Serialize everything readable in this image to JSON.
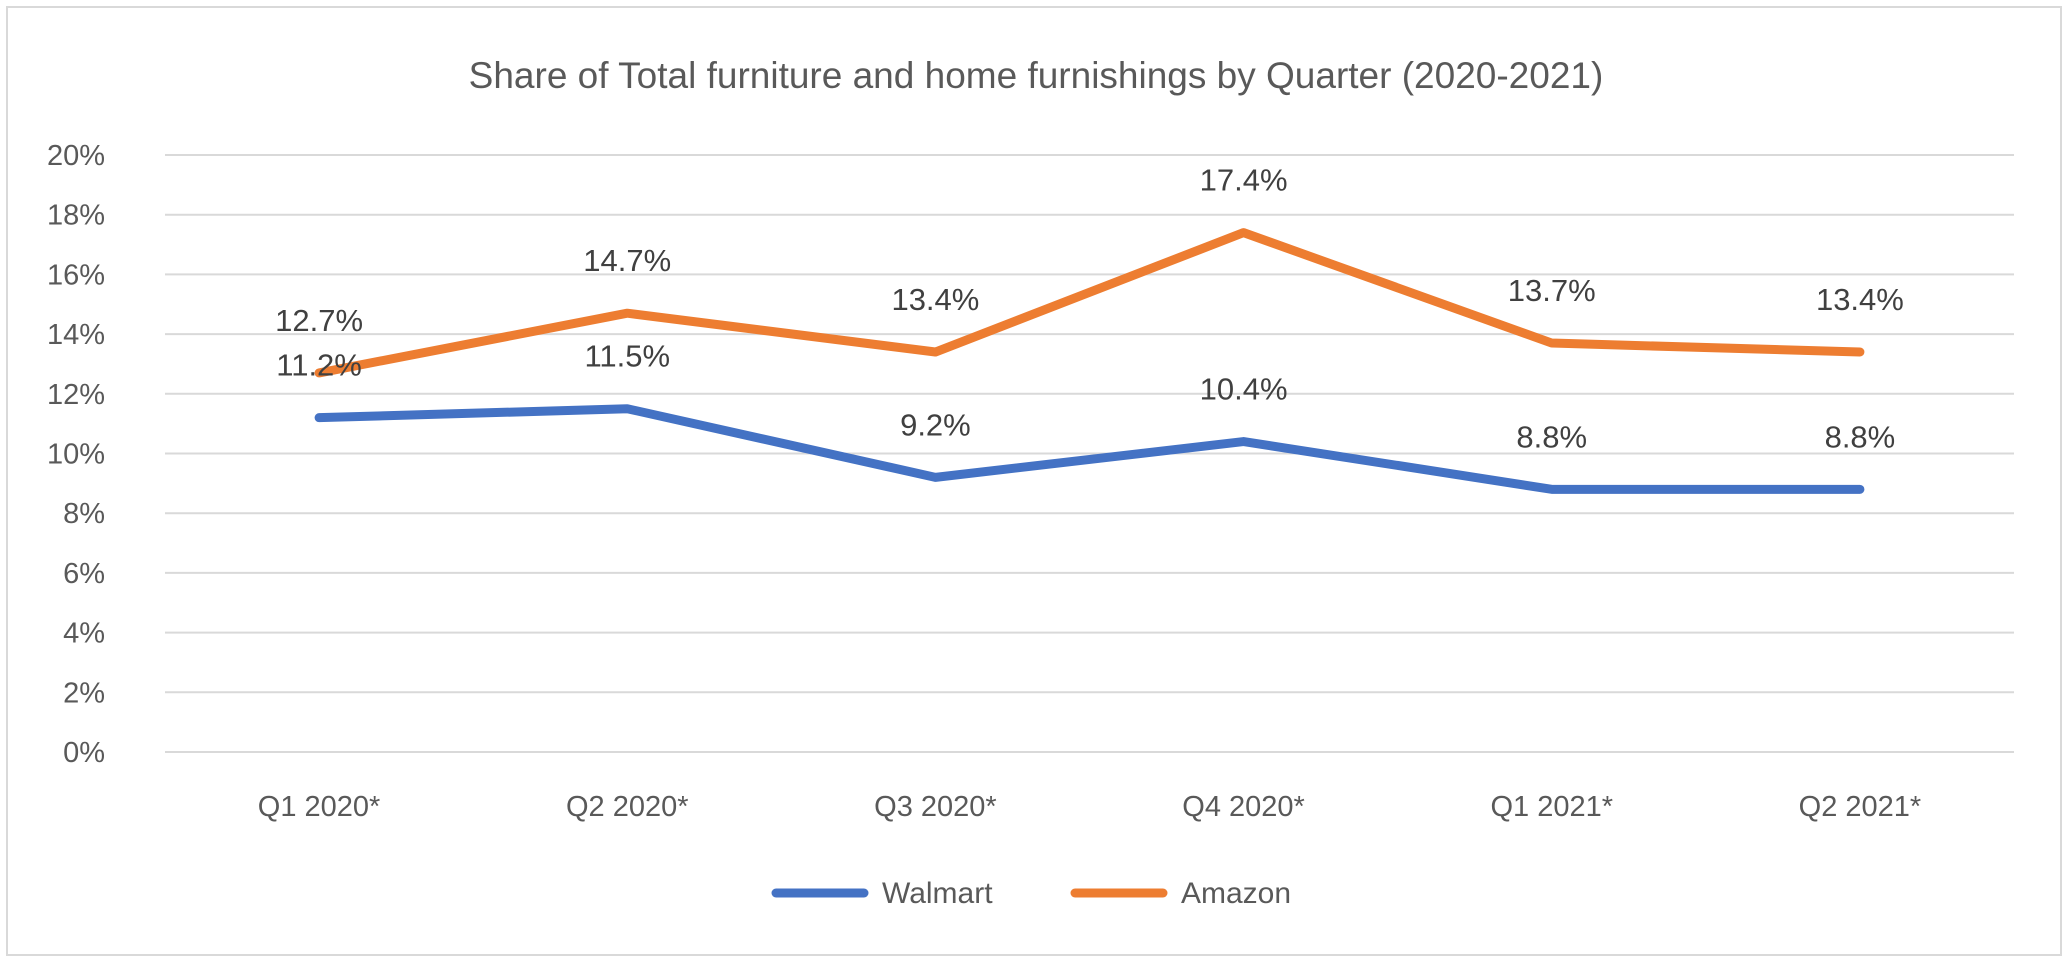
{
  "chart_data": {
    "type": "line",
    "title": "Share of Total furniture and home furnishings by Quarter (2020-2021)",
    "xlabel": "",
    "ylabel": "",
    "categories": [
      "Q1 2020*",
      "Q2 2020*",
      "Q3 2020*",
      "Q4 2020*",
      "Q1 2021*",
      "Q2 2021*"
    ],
    "ylim": [
      0,
      20
    ],
    "yticks": [
      0,
      2,
      4,
      6,
      8,
      10,
      12,
      14,
      16,
      18,
      20
    ],
    "ytick_labels": [
      "0%",
      "2%",
      "4%",
      "6%",
      "8%",
      "10%",
      "12%",
      "14%",
      "16%",
      "18%",
      "20%"
    ],
    "grid": true,
    "legend_position": "bottom",
    "series": [
      {
        "name": "Walmart",
        "color": "#4472C4",
        "values": [
          11.2,
          11.5,
          9.2,
          10.4,
          8.8,
          8.8
        ],
        "labels": [
          "11.2%",
          "11.5%",
          "9.2%",
          "10.4%",
          "8.8%",
          "8.8%"
        ]
      },
      {
        "name": "Amazon",
        "color": "#ED7D31",
        "values": [
          12.7,
          14.7,
          13.4,
          17.4,
          13.7,
          13.4
        ],
        "labels": [
          "12.7%",
          "14.7%",
          "13.4%",
          "17.4%",
          "13.7%",
          "13.4%"
        ]
      }
    ]
  }
}
